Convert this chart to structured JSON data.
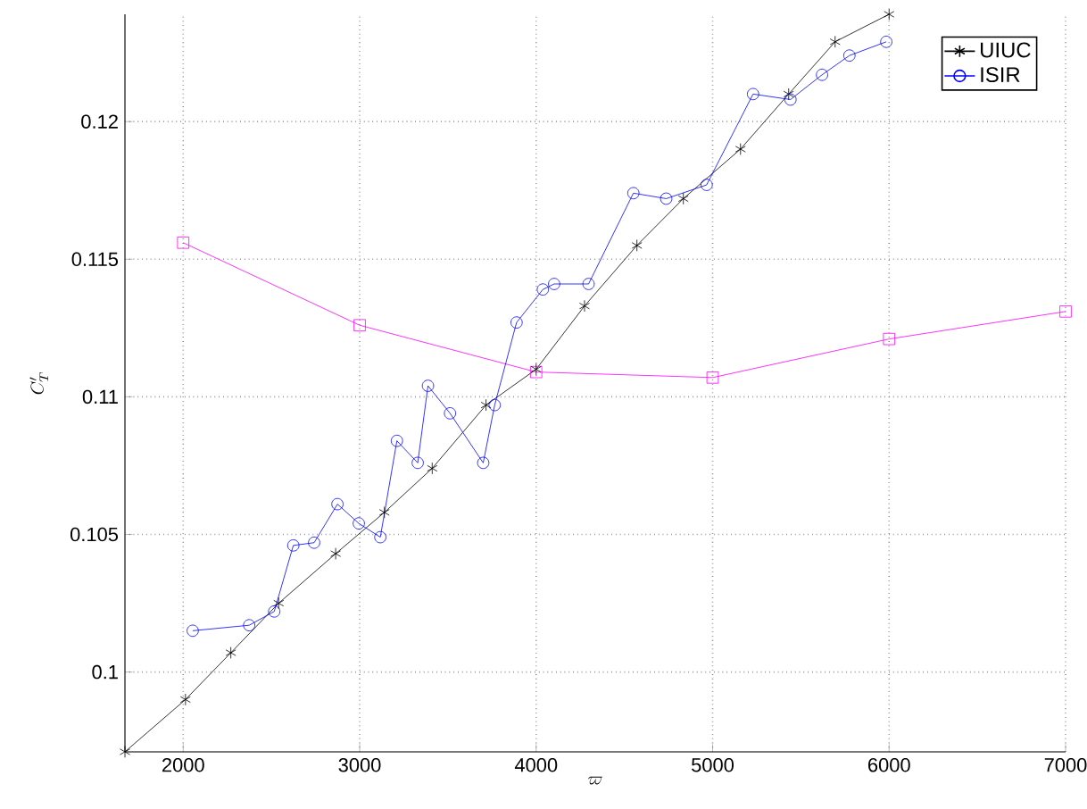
{
  "chart_data": {
    "type": "line",
    "xlabel": "\\varpi",
    "ylabel": "C'_T",
    "xlim": [
      1670,
      7000
    ],
    "ylim": [
      0.0971,
      0.1239
    ],
    "xticks": [
      2000,
      3000,
      4000,
      5000,
      6000,
      7000
    ],
    "yticks": [
      0.1,
      0.105,
      0.11,
      0.115,
      0.12
    ],
    "grid": true,
    "legend": "top right",
    "series": [
      {
        "color": "#ff00ff",
        "marker": "square",
        "x": [
          2000,
          3000,
          4000,
          5000,
          6000,
          7000
        ],
        "values": [
          0.1156,
          0.1126,
          0.1109,
          0.1107,
          0.1121,
          0.1131
        ]
      },
      {
        "name": "UIUC",
        "color": "#000000",
        "marker": "cross",
        "x": [
          1670,
          2013,
          2270,
          2541,
          2864,
          3140,
          3411,
          3716,
          4000,
          4274,
          4571,
          4834,
          5158,
          5431,
          5694,
          6000
        ],
        "values": [
          0.0971,
          0.099,
          0.1007,
          0.1025,
          0.1043,
          0.1058,
          0.1074,
          0.1097,
          0.111,
          0.1133,
          0.1155,
          0.1172,
          0.119,
          0.121,
          0.1229,
          0.1239
        ]
      },
      {
        "name": "ISIR",
        "color": "#0000ff",
        "marker": "circle",
        "x": [
          2054,
          2374,
          2516,
          2624,
          2742,
          2874,
          2995,
          3117,
          3211,
          3329,
          3387,
          3512,
          3700,
          3765,
          3889,
          4038,
          4102,
          4297,
          4551,
          4737,
          4966,
          5229,
          5441,
          5620,
          5775,
          5984
        ],
        "values": [
          0.1015,
          0.1017,
          0.1022,
          0.1046,
          0.1047,
          0.1061,
          0.1054,
          0.1049,
          0.1084,
          0.1076,
          0.1104,
          0.1094,
          0.1076,
          0.1097,
          0.1127,
          0.1139,
          0.1141,
          0.1141,
          0.1174,
          0.1172,
          0.1177,
          0.121,
          0.1208,
          0.1217,
          0.1224,
          0.1229
        ]
      }
    ]
  }
}
